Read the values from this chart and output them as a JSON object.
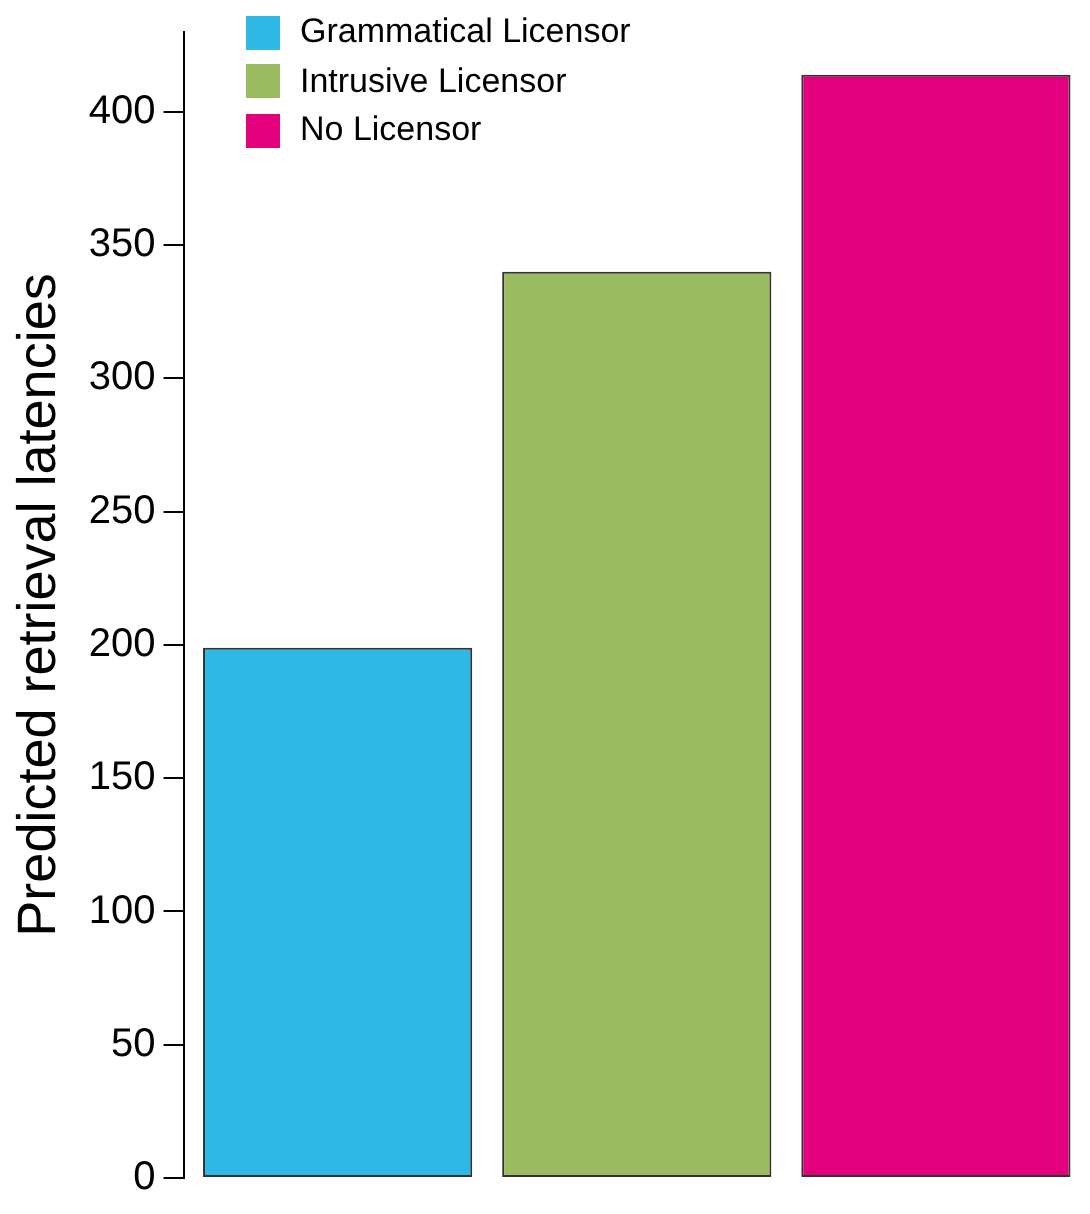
{
  "chart_data": {
    "type": "bar",
    "ylabel": "Predicted retrieval latencies",
    "categories": [
      null
    ],
    "series": [
      {
        "name": "Grammatical Licensor",
        "color": "#2eb8e6",
        "values": [
          199
        ]
      },
      {
        "name": "Intrusive Licensor",
        "color": "#9bbb61",
        "values": [
          340
        ]
      },
      {
        "name": "No Licensor",
        "color": "#e3007c",
        "values": [
          414
        ]
      }
    ],
    "ylim": [
      0,
      430
    ],
    "yticks": [
      0,
      50,
      100,
      150,
      200,
      250,
      300,
      350,
      400
    ],
    "grid": false,
    "legend": "top left"
  }
}
